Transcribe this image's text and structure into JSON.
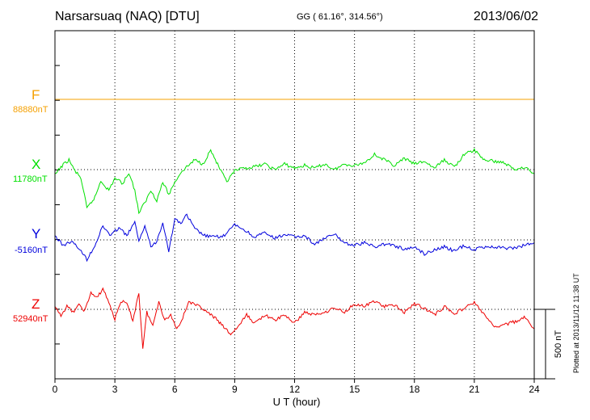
{
  "header": {
    "station": "Narsarsuaq (NAQ)  [DTU]",
    "coords": "GG ( 61.16°, 314.56°)",
    "date": "2013/06/02"
  },
  "side_note": "Plotted at 2013/11/12 11:38 UT",
  "components": [
    {
      "letter": "F",
      "baseline": "88880nT",
      "color": "#f5a000"
    },
    {
      "letter": "X",
      "baseline": "11780nT",
      "color": "#00e000"
    },
    {
      "letter": "Y",
      "baseline": "-5160nT",
      "color": "#0000dd"
    },
    {
      "letter": "Z",
      "baseline": "52940nT",
      "color": "#ee0000"
    }
  ],
  "scale_label": "500 nT",
  "chart_data": {
    "type": "line",
    "xlabel": "U T (hour)",
    "xlim": [
      0,
      24
    ],
    "xticks": [
      "0",
      "3",
      "6",
      "9",
      "12",
      "15",
      "18",
      "21",
      "24"
    ],
    "y_units": "nT offset from baseline",
    "grid": true,
    "series": [
      {
        "name": "F",
        "x": [
          0,
          24
        ],
        "values": [
          0,
          0
        ]
      },
      {
        "name": "X",
        "x": [
          0,
          0.3,
          0.7,
          1.0,
          1.3,
          1.6,
          2.0,
          2.3,
          2.7,
          3.0,
          3.4,
          3.7,
          4.0,
          4.2,
          4.5,
          4.8,
          5.1,
          5.4,
          5.7,
          6.0,
          6.3,
          6.6,
          7.0,
          7.4,
          7.8,
          8.2,
          8.6,
          9.0,
          9.5,
          10,
          10.5,
          11,
          11.5,
          12,
          12.5,
          13,
          13.5,
          14,
          14.5,
          15,
          15.5,
          16,
          16.5,
          17,
          17.5,
          18,
          18.5,
          19,
          19.5,
          20,
          20.5,
          21,
          21.5,
          22,
          22.5,
          23,
          23.5,
          24
        ],
        "values": [
          -40,
          20,
          70,
          -10,
          -60,
          -280,
          -200,
          -80,
          -150,
          -60,
          -100,
          -20,
          -150,
          -310,
          -240,
          -150,
          -220,
          -90,
          -180,
          -90,
          -20,
          20,
          70,
          40,
          140,
          20,
          -90,
          -10,
          10,
          20,
          40,
          0,
          40,
          10,
          30,
          10,
          40,
          0,
          40,
          30,
          50,
          110,
          70,
          30,
          80,
          40,
          60,
          10,
          70,
          20,
          110,
          140,
          70,
          60,
          50,
          0,
          20,
          -30
        ]
      },
      {
        "name": "Y",
        "x": [
          0,
          0.4,
          0.8,
          1.2,
          1.6,
          2.0,
          2.4,
          2.8,
          3.2,
          3.6,
          4.0,
          4.2,
          4.5,
          4.8,
          5.1,
          5.4,
          5.7,
          6.0,
          6.3,
          6.6,
          7.0,
          7.5,
          8.0,
          8.5,
          9.0,
          9.5,
          10,
          10.5,
          11,
          11.5,
          12,
          12.5,
          13,
          13.5,
          14,
          14.5,
          15,
          15.5,
          16,
          16.5,
          17,
          17.5,
          18,
          18.5,
          19,
          19.5,
          20,
          20.5,
          21,
          21.5,
          22,
          22.5,
          23,
          23.5,
          24
        ],
        "values": [
          30,
          -40,
          -10,
          -60,
          -140,
          -40,
          100,
          30,
          90,
          30,
          130,
          -20,
          110,
          -50,
          -10,
          130,
          -80,
          150,
          120,
          180,
          80,
          30,
          20,
          30,
          110,
          70,
          20,
          50,
          10,
          40,
          20,
          30,
          -30,
          10,
          40,
          -20,
          -40,
          -20,
          -50,
          -30,
          -40,
          -70,
          -50,
          -100,
          -70,
          -50,
          -80,
          -40,
          -70,
          -50,
          -50,
          -60,
          -60,
          -40,
          -20
        ]
      },
      {
        "name": "Z",
        "x": [
          0,
          0.3,
          0.6,
          0.9,
          1.2,
          1.5,
          1.8,
          2.1,
          2.4,
          2.7,
          3.0,
          3.3,
          3.6,
          3.9,
          4.2,
          4.4,
          4.6,
          4.9,
          5.2,
          5.5,
          5.8,
          6.1,
          6.4,
          6.7,
          7.0,
          7.3,
          7.6,
          8.0,
          8.4,
          8.8,
          9.2,
          9.6,
          10,
          10.5,
          11,
          11.5,
          12,
          12.5,
          13,
          13.5,
          14,
          14.5,
          15,
          15.5,
          16,
          16.5,
          17,
          17.5,
          18,
          18.5,
          19,
          19.5,
          20,
          20.5,
          21,
          21.5,
          22,
          22.5,
          23,
          23.5,
          24
        ],
        "values": [
          10,
          -40,
          20,
          -20,
          30,
          -10,
          120,
          80,
          150,
          50,
          -70,
          60,
          40,
          -80,
          120,
          -280,
          -20,
          -120,
          60,
          -80,
          -40,
          -140,
          -60,
          60,
          30,
          20,
          -20,
          -60,
          -120,
          -180,
          -120,
          -40,
          -100,
          -40,
          -80,
          -40,
          -100,
          -20,
          -40,
          -20,
          10,
          -20,
          40,
          20,
          60,
          20,
          30,
          -20,
          40,
          10,
          -40,
          20,
          -30,
          10,
          50,
          -40,
          -130,
          -110,
          -90,
          -60,
          -140
        ]
      }
    ]
  }
}
